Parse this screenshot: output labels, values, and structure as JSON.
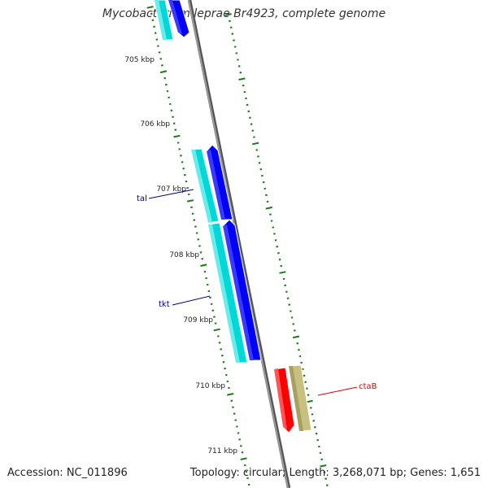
{
  "title": "Mycobacterium leprae Br4923, complete genome",
  "footer": {
    "accession": "Accession: NC_011896",
    "summary": "Topology: circular; Length: 3,268,071 bp; Genes: 1,651"
  },
  "ticks": [
    {
      "label": "705 kbp"
    },
    {
      "label": "706 kbp"
    },
    {
      "label": "707 kbp"
    },
    {
      "label": "708 kbp"
    },
    {
      "label": "709 kbp"
    },
    {
      "label": "710 kbp"
    },
    {
      "label": "711 kbp"
    }
  ],
  "genes": [
    {
      "name": "tal",
      "color": "#00008b"
    },
    {
      "name": "tkt",
      "color": "#00008b"
    },
    {
      "name": "ctaB",
      "color": "#e00000"
    }
  ],
  "colors": {
    "backbone": "#808080",
    "tick": "#1a7a1a",
    "cds_forward": "#0000ff",
    "cds_alt": "#00d8d8",
    "cds_reverse": "#ff0000",
    "cds_reverse_alt": "#c8c080"
  }
}
